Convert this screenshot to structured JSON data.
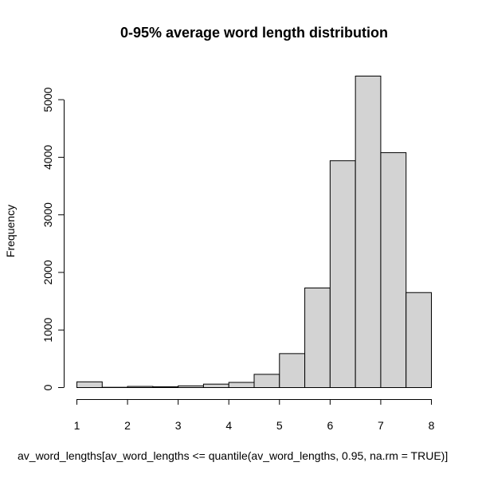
{
  "chart_data": {
    "type": "bar",
    "title": "0-95% average word length distribution",
    "xlabel": "av_word_lengths[av_word_lengths <= quantile(av_word_lengths, 0.95, na.rm = TRUE)]",
    "ylabel": "Frequency",
    "bin_edges": [
      1,
      1.5,
      2,
      2.5,
      3,
      3.5,
      4,
      4.5,
      5,
      5.5,
      6,
      6.5,
      7,
      7.5,
      8
    ],
    "values": [
      100,
      5,
      20,
      15,
      30,
      60,
      90,
      230,
      590,
      1730,
      3940,
      5410,
      4080,
      1650
    ],
    "xlim": [
      1,
      8
    ],
    "ylim": [
      0,
      5410
    ],
    "x_ticks": [
      "1",
      "2",
      "3",
      "4",
      "5",
      "6",
      "7",
      "8"
    ],
    "y_ticks": [
      "0",
      "1000",
      "2000",
      "3000",
      "4000",
      "5000"
    ],
    "bar_color": "#D3D3D3",
    "edge_color": "#000000",
    "grid": false,
    "legend": "none"
  }
}
